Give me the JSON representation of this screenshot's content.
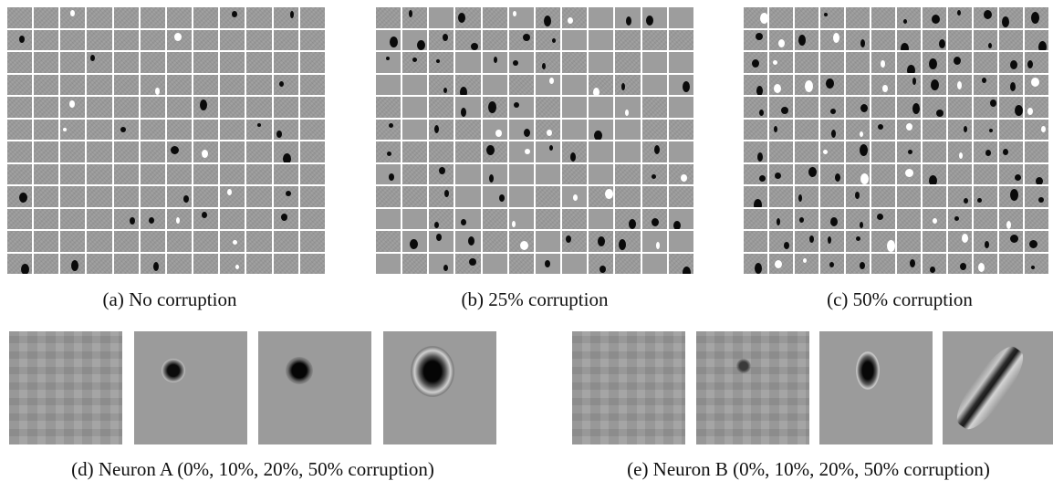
{
  "panels": [
    {
      "caption": "(a)  No corruption"
    },
    {
      "caption": "(b)  25% corruption"
    },
    {
      "caption": "(c)  50% corruption"
    }
  ],
  "neurons": [
    {
      "caption": "(d)  Neuron A (0%, 10%, 20%, 50% corruption)"
    },
    {
      "caption": "(e)  Neuron B (0%, 10%, 20%, 50% corruption)"
    }
  ]
}
